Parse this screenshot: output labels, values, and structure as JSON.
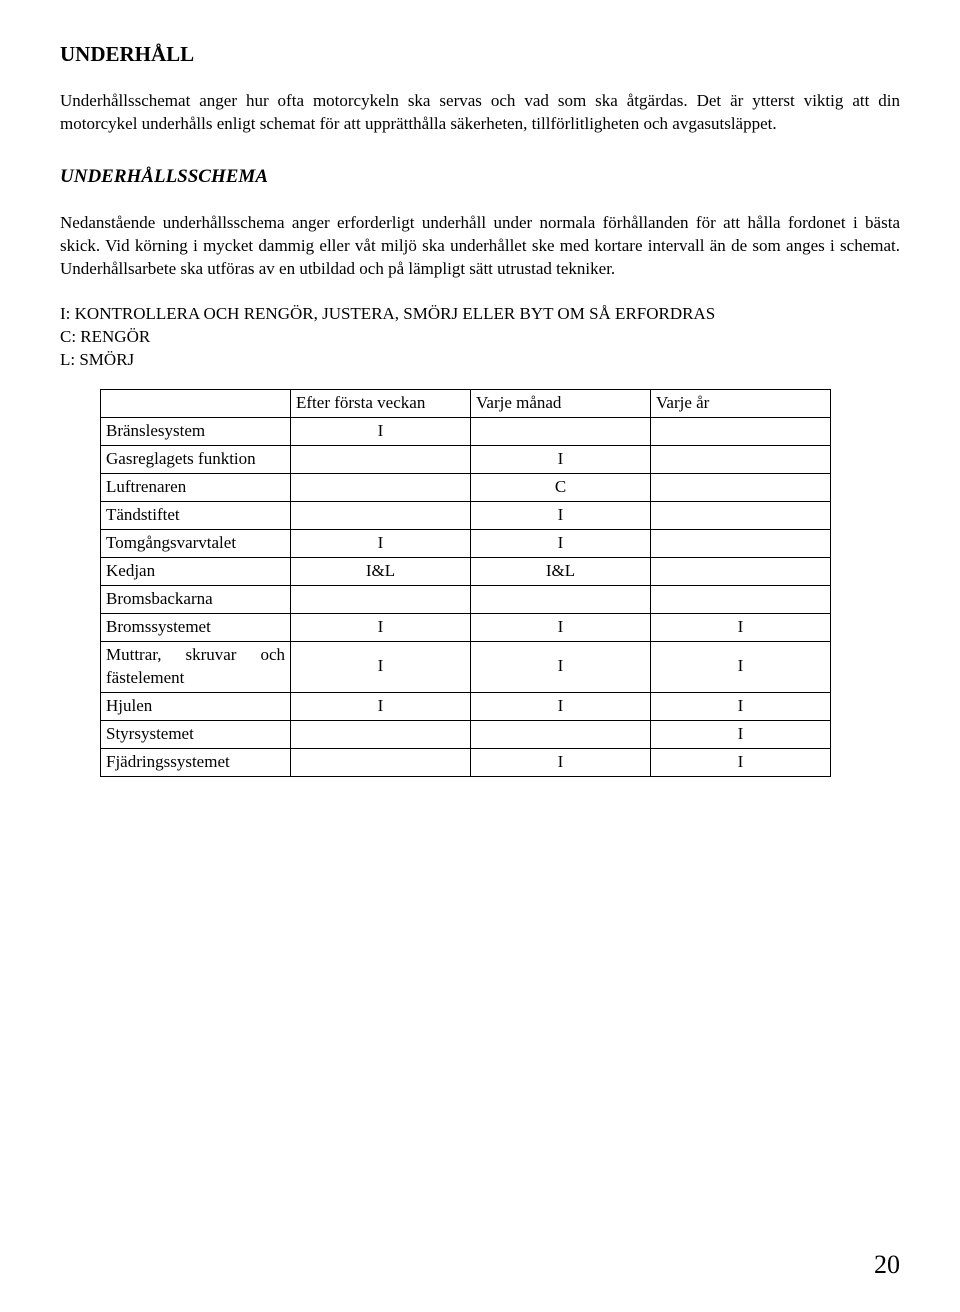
{
  "title": "UNDERHÅLL",
  "intro": "Underhållsschemat anger hur ofta motorcykeln ska servas och vad som ska åtgärdas. Det är ytterst viktig att din motorcykel underhålls enligt schemat för att upprätthålla säkerheten, tillförlitligheten och avgasutsläppet.",
  "schema_title": "UNDERHÅLLSSCHEMA",
  "schema_para": "Nedanstående underhållsschema anger erforderligt underhåll under normala förhållanden för att hålla fordonet i bästa skick. Vid körning i mycket dammig eller våt miljö ska underhållet ske med kortare intervall än de som anges i schemat. Underhållsarbete ska utföras av en utbildad och på lämpligt sätt utrustad tekniker.",
  "legend": {
    "line1": "I: KONTROLLERA OCH RENGÖR, JUSTERA, SMÖRJ ELLER BYT OM SÅ ERFORDRAS",
    "line2": "C: RENGÖR",
    "line3": "L: SMÖRJ"
  },
  "table": {
    "headers": [
      "",
      "Efter första veckan",
      "Varje månad",
      "Varje år"
    ],
    "rows": [
      {
        "label": "Bränslesystem",
        "c1": "I",
        "c2": "",
        "c3": ""
      },
      {
        "label": "Gasreglagets funktion",
        "c1": "",
        "c2": "I",
        "c3": ""
      },
      {
        "label": "Luftrenaren",
        "c1": "",
        "c2": "C",
        "c3": ""
      },
      {
        "label": "Tändstiftet",
        "c1": "",
        "c2": "I",
        "c3": ""
      },
      {
        "label": "Tomgångsvarvtalet",
        "c1": "I",
        "c2": "I",
        "c3": ""
      },
      {
        "label": "Kedjan",
        "c1": "I&L",
        "c2": "I&L",
        "c3": ""
      },
      {
        "label": "Bromsbackarna",
        "c1": "",
        "c2": "",
        "c3": ""
      },
      {
        "label": "Bromssystemet",
        "c1": "I",
        "c2": "I",
        "c3": "I"
      },
      {
        "label": "Muttrar,  skruvar  och fästelement",
        "c1": "I",
        "c2": "I",
        "c3": "I"
      },
      {
        "label": "Hjulen",
        "c1": "I",
        "c2": "I",
        "c3": "I"
      },
      {
        "label": "Styrsystemet",
        "c1": "",
        "c2": "",
        "c3": "I"
      },
      {
        "label": "Fjädringssystemet",
        "c1": "",
        "c2": "I",
        "c3": "I"
      }
    ]
  },
  "page_number": "20"
}
